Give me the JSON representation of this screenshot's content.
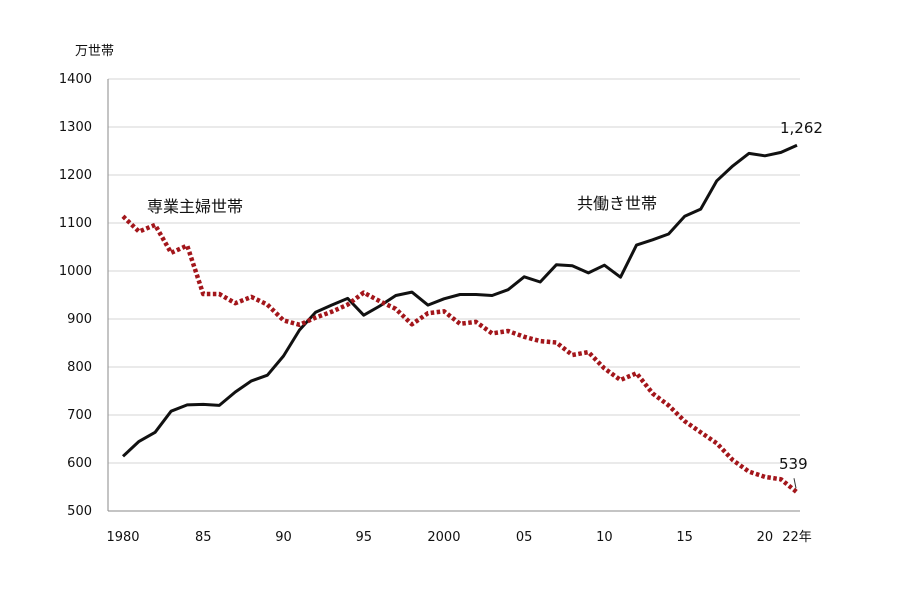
{
  "chart_data": {
    "type": "line",
    "y_unit_label": "万世帯",
    "ylim": [
      500,
      1400
    ],
    "y_ticks": [
      500,
      600,
      700,
      800,
      900,
      1000,
      1100,
      1200,
      1300,
      1400
    ],
    "grid": true,
    "x": [
      1980,
      1981,
      1982,
      1983,
      1984,
      1985,
      1986,
      1987,
      1988,
      1989,
      1990,
      1991,
      1992,
      1993,
      1994,
      1995,
      1996,
      1997,
      1998,
      1999,
      2000,
      2001,
      2002,
      2003,
      2004,
      2005,
      2006,
      2007,
      2008,
      2009,
      2010,
      2011,
      2012,
      2013,
      2014,
      2015,
      2016,
      2017,
      2018,
      2019,
      2020,
      2021,
      2022
    ],
    "x_ticks": [
      {
        "x": 1980,
        "label": "1980"
      },
      {
        "x": 1985,
        "label": "85"
      },
      {
        "x": 1990,
        "label": "90"
      },
      {
        "x": 1995,
        "label": "95"
      },
      {
        "x": 2000,
        "label": "2000"
      },
      {
        "x": 2005,
        "label": "05"
      },
      {
        "x": 2010,
        "label": "10"
      },
      {
        "x": 2015,
        "label": "15"
      },
      {
        "x": 2020,
        "label": "20"
      },
      {
        "x": 2022,
        "label": "22年"
      }
    ],
    "series": [
      {
        "name": "共働き世帯",
        "color": "#111111",
        "style": "solid",
        "values": [
          614,
          645,
          664,
          708,
          721,
          722,
          720,
          748,
          771,
          783,
          823,
          877,
          914,
          929,
          943,
          908,
          927,
          949,
          956,
          929,
          942,
          951,
          951,
          949,
          961,
          988,
          977,
          1013,
          1011,
          996,
          1012,
          987,
          1054,
          1065,
          1077,
          1114,
          1129,
          1188,
          1219,
          1245,
          1240,
          1247,
          1262
        ],
        "end_label": "1,262"
      },
      {
        "name": "専業主婦世帯",
        "color": "#a3161b",
        "style": "dotted",
        "values": [
          1114,
          1082,
          1096,
          1038,
          1053,
          952,
          952,
          933,
          946,
          930,
          897,
          888,
          903,
          915,
          930,
          955,
          937,
          921,
          889,
          912,
          916,
          890,
          894,
          870,
          875,
          863,
          854,
          851,
          825,
          831,
          797,
          773,
          787,
          745,
          720,
          687,
          664,
          641,
          606,
          582,
          571,
          566,
          539
        ],
        "end_label": "539"
      }
    ]
  }
}
